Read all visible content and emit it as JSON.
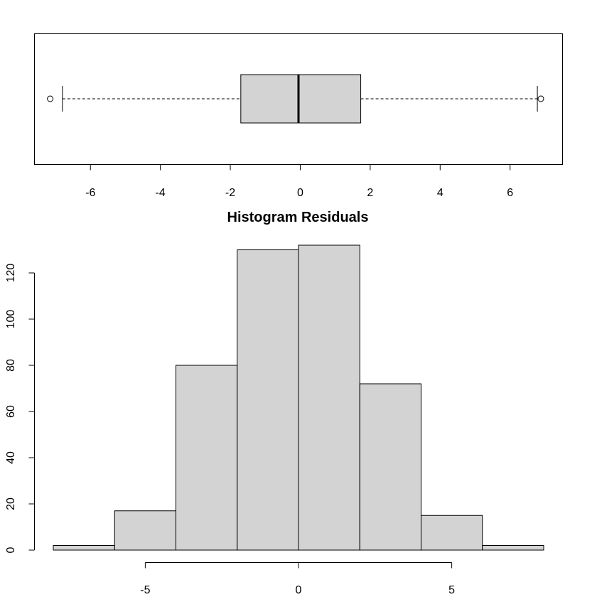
{
  "chart_data": [
    {
      "type": "boxplot",
      "orientation": "horizontal",
      "title": "",
      "xlim": [
        -7.6,
        7.5
      ],
      "xticks": [
        -6,
        -4,
        -2,
        0,
        2,
        4,
        6
      ],
      "xtick_labels": [
        "-6",
        "-4",
        "-2",
        "0",
        "2",
        "4",
        "6"
      ],
      "stats": {
        "lower_whisker": -6.8,
        "q1": -1.7,
        "median": -0.05,
        "q3": 1.73,
        "upper_whisker": 6.78
      },
      "outliers": [
        -7.15,
        6.88
      ],
      "box_fill": "#d3d3d3"
    },
    {
      "type": "bar",
      "subtype": "histogram",
      "title": "Histogram Residuals",
      "bin_edges": [
        -8,
        -6,
        -4,
        -2,
        0,
        2,
        4,
        6,
        8
      ],
      "counts": [
        2,
        17,
        80,
        130,
        132,
        72,
        15,
        2
      ],
      "xticks": [
        -5,
        0,
        5
      ],
      "xtick_labels": [
        "-5",
        "0",
        "5"
      ],
      "yticks": [
        0,
        20,
        40,
        60,
        80,
        100,
        120
      ],
      "ytick_labels": [
        "0",
        "20",
        "40",
        "60",
        "80",
        "100",
        "120"
      ],
      "ylim": [
        0,
        132
      ],
      "bar_fill": "#d3d3d3"
    }
  ]
}
